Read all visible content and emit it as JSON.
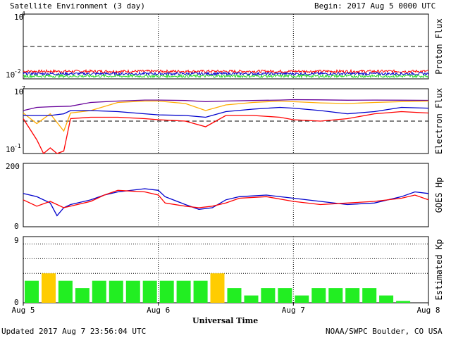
{
  "header": {
    "title": "Satellite Environment (3 day)",
    "begin": "Begin:  2017 Aug 5 0000 UTC"
  },
  "footer": {
    "updated": "Updated 2017 Aug  7 23:56:04 UTC",
    "credit": "NOAA/SWPC Boulder, CO USA",
    "xlabel": "Universal Time"
  },
  "x_ticks": [
    "Aug 5",
    "Aug 6",
    "Aug 7",
    "Aug 8"
  ],
  "chart_data": [
    {
      "type": "line",
      "ylabel": "Proton Flux",
      "yscale": "log",
      "ylim": [
        0.01,
        10000
      ],
      "ytick_labels": [
        "10^4",
        "10^-2"
      ],
      "xlim_days": [
        0,
        3
      ],
      "threshold": 10,
      "grid": "vertical dotted at day boundaries",
      "series": [
        {
          "color": "#ff0000",
          "level": 0.05
        },
        {
          "color": "#0000cc",
          "level": 0.03
        },
        {
          "color": "#22dd22",
          "level": 0.018
        }
      ]
    },
    {
      "type": "line",
      "ylabel": "Electron Flux",
      "yscale": "log",
      "ylim": [
        0.1,
        10000000
      ],
      "ytick_labels": [
        "10^7",
        "10^-1"
      ],
      "threshold": 1000,
      "series": [
        {
          "color": "#660099",
          "x": [
            0,
            0.1,
            0.2,
            0.35,
            0.5,
            0.7,
            0.9,
            1.0,
            1.2,
            1.35,
            1.5,
            1.7,
            1.9,
            2.0,
            2.2,
            2.4,
            2.6,
            2.8,
            3.0
          ],
          "y": [
            20000,
            50000,
            60000,
            70000,
            200000,
            300000,
            400000,
            400000,
            350000,
            250000,
            300000,
            350000,
            400000,
            450000,
            420000,
            380000,
            400000,
            380000,
            370000
          ]
        },
        {
          "color": "#ffaa00",
          "x": [
            0,
            0.1,
            0.2,
            0.3,
            0.35,
            0.5,
            0.7,
            0.9,
            1.0,
            1.2,
            1.35,
            1.5,
            1.7,
            1.9,
            2.0,
            2.2,
            2.4,
            2.6,
            2.8,
            3.0
          ],
          "y": [
            10000,
            500,
            8000,
            60,
            10000,
            20000,
            200000,
            300000,
            300000,
            150000,
            20000,
            100000,
            200000,
            300000,
            250000,
            180000,
            150000,
            200000,
            250000,
            300000
          ]
        },
        {
          "color": "#0000cc",
          "x": [
            0,
            0.1,
            0.2,
            0.3,
            0.35,
            0.5,
            0.7,
            0.9,
            1.0,
            1.2,
            1.35,
            1.5,
            1.7,
            1.9,
            2.0,
            2.2,
            2.4,
            2.6,
            2.8,
            3.0
          ],
          "y": [
            5000,
            5000,
            5000,
            8000,
            20000,
            20000,
            15000,
            8000,
            6000,
            5000,
            3000,
            15000,
            30000,
            50000,
            40000,
            20000,
            8000,
            15000,
            50000,
            40000
          ]
        },
        {
          "color": "#ff0000",
          "x": [
            0,
            0.1,
            0.15,
            0.2,
            0.25,
            0.3,
            0.35,
            0.5,
            0.7,
            0.9,
            1.0,
            1.2,
            1.35,
            1.5,
            1.7,
            1.9,
            2.0,
            2.2,
            2.4,
            2.6,
            2.8,
            3.0
          ],
          "y": [
            2000,
            5,
            0.1,
            0.5,
            0.1,
            0.2,
            2000,
            3000,
            3000,
            2000,
            1500,
            1000,
            200,
            5000,
            5000,
            3000,
            1500,
            1000,
            2000,
            8000,
            15000,
            10000
          ]
        }
      ]
    },
    {
      "type": "line",
      "ylabel": "GOES Hp",
      "ylim": [
        0,
        200
      ],
      "ytick_labels": [
        "200",
        "0"
      ],
      "series": [
        {
          "color": "#0000cc",
          "x": [
            0,
            0.1,
            0.2,
            0.25,
            0.3,
            0.35,
            0.5,
            0.6,
            0.7,
            0.9,
            1.0,
            1.05,
            1.2,
            1.3,
            1.4,
            1.5,
            1.6,
            1.8,
            2.0,
            2.2,
            2.4,
            2.6,
            2.8,
            2.9,
            3.0
          ],
          "y": [
            105,
            95,
            75,
            35,
            60,
            70,
            85,
            100,
            110,
            120,
            115,
            95,
            70,
            55,
            60,
            85,
            95,
            100,
            90,
            80,
            70,
            75,
            95,
            110,
            105
          ]
        },
        {
          "color": "#ff0000",
          "x": [
            0,
            0.1,
            0.2,
            0.3,
            0.35,
            0.5,
            0.6,
            0.7,
            0.9,
            1.0,
            1.05,
            1.2,
            1.3,
            1.4,
            1.5,
            1.6,
            1.8,
            2.0,
            2.2,
            2.4,
            2.6,
            2.8,
            2.9,
            3.0
          ],
          "y": [
            85,
            65,
            80,
            60,
            65,
            80,
            100,
            115,
            110,
            100,
            75,
            65,
            60,
            65,
            75,
            90,
            95,
            80,
            70,
            75,
            80,
            90,
            100,
            85
          ]
        }
      ]
    },
    {
      "type": "bar",
      "ylabel": "Estimated Kp",
      "ylim": [
        0,
        9
      ],
      "ytick_labels": [
        "9",
        "0"
      ],
      "bar_width_hours": 3,
      "kp_values": [
        3,
        4,
        3,
        2,
        3,
        3,
        3,
        3,
        3,
        3,
        3,
        4,
        2,
        1,
        2,
        2,
        1,
        2,
        2,
        2,
        2,
        1,
        0.25
      ],
      "colors": {
        "green": "#22ee22",
        "yellow": "#ffcc00"
      },
      "yellow_at": 4
    }
  ]
}
